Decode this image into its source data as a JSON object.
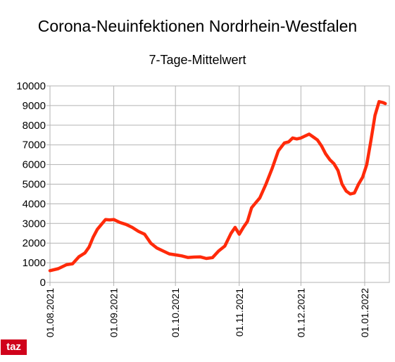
{
  "chart_data": {
    "type": "line",
    "title": "Corona-Neuinfektionen Nordrhein-Westfalen",
    "subtitle": "7-Tage-Mittelwert",
    "xlabel": "",
    "ylabel": "",
    "ylim": [
      0,
      10000
    ],
    "yticks": [
      0,
      1000,
      2000,
      3000,
      4000,
      5000,
      6000,
      7000,
      8000,
      9000,
      10000
    ],
    "xticks": [
      "01.08.2021",
      "01.09.2021",
      "01.10.2021",
      "01.11.2021",
      "01.12.2021",
      "01.01.2022"
    ],
    "grid": true,
    "legend": "none",
    "series": [
      {
        "color": "#ff2a0a",
        "x": [
          "2021-08-01",
          "2021-08-05",
          "2021-08-09",
          "2021-08-12",
          "2021-08-15",
          "2021-08-18",
          "2021-08-20",
          "2021-08-22",
          "2021-08-24",
          "2021-08-26",
          "2021-08-28",
          "2021-08-30",
          "2021-09-01",
          "2021-09-04",
          "2021-09-07",
          "2021-09-10",
          "2021-09-13",
          "2021-09-16",
          "2021-09-19",
          "2021-09-22",
          "2021-09-25",
          "2021-09-28",
          "2021-10-01",
          "2021-10-04",
          "2021-10-07",
          "2021-10-10",
          "2021-10-13",
          "2021-10-16",
          "2021-10-19",
          "2021-10-22",
          "2021-10-25",
          "2021-10-28",
          "2021-10-30",
          "2021-11-01",
          "2021-11-03",
          "2021-11-05",
          "2021-11-07",
          "2021-11-09",
          "2021-11-11",
          "2021-11-14",
          "2021-11-17",
          "2021-11-20",
          "2021-11-23",
          "2021-11-25",
          "2021-11-27",
          "2021-11-29",
          "2021-12-01",
          "2021-12-03",
          "2021-12-05",
          "2021-12-07",
          "2021-12-09",
          "2021-12-11",
          "2021-12-13",
          "2021-12-15",
          "2021-12-17",
          "2021-12-19",
          "2021-12-21",
          "2021-12-23",
          "2021-12-25",
          "2021-12-27",
          "2021-12-29",
          "2021-12-31",
          "2022-01-02",
          "2022-01-04",
          "2022-01-06",
          "2022-01-08",
          "2022-01-10",
          "2022-01-11"
        ],
        "y": [
          600,
          700,
          900,
          950,
          1300,
          1500,
          1800,
          2300,
          2700,
          2950,
          3200,
          3180,
          3200,
          3050,
          2950,
          2800,
          2600,
          2450,
          2000,
          1750,
          1600,
          1450,
          1400,
          1350,
          1270,
          1290,
          1300,
          1220,
          1260,
          1600,
          1850,
          2500,
          2800,
          2450,
          2800,
          3100,
          3800,
          4050,
          4300,
          5000,
          5800,
          6700,
          7100,
          7150,
          7350,
          7300,
          7350,
          7450,
          7550,
          7400,
          7250,
          6950,
          6550,
          6250,
          6050,
          5700,
          5000,
          4650,
          4500,
          4550,
          5000,
          5350,
          6000,
          7200,
          8500,
          9200,
          9150,
          9100
        ]
      }
    ]
  },
  "logo": {
    "text": "taz"
  }
}
